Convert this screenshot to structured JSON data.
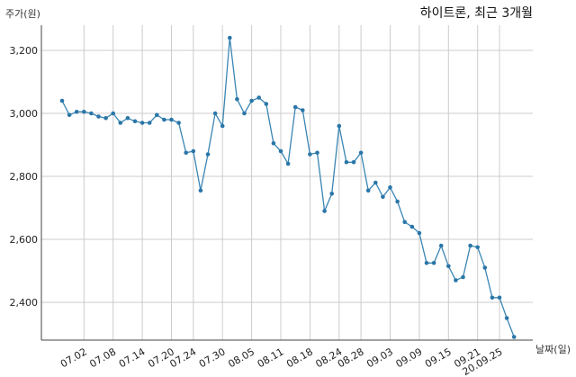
{
  "chart_data": {
    "type": "line",
    "title": "하이트론, 최근 3개월",
    "ylabel": "주가(원)",
    "xlabel": "날짜(일)",
    "ylim": [
      2280,
      3280
    ],
    "yticks": [
      2400,
      2600,
      2800,
      3000,
      3200
    ],
    "ytick_labels": [
      "2,400",
      "2,600",
      "2,800",
      "3,000",
      "3,200"
    ],
    "xtick_labels": [
      "07.02",
      "07.08",
      "07.14",
      "07.20",
      "07.24",
      "07.30",
      "08.05",
      "08.11",
      "08.18",
      "08.24",
      "08.28",
      "09.03",
      "09.09",
      "09.15",
      "09.21",
      "20.09.25"
    ],
    "xtick_index": [
      3,
      7,
      11,
      15,
      18,
      22,
      26,
      30,
      34,
      38,
      41,
      45,
      49,
      53,
      57,
      60
    ],
    "grid": true,
    "legend": "none",
    "color": "#2b76a8",
    "values": [
      3040,
      2995,
      3005,
      3005,
      3000,
      2990,
      2985,
      3000,
      2970,
      2985,
      2975,
      2970,
      2970,
      2995,
      2980,
      2980,
      2970,
      2875,
      2880,
      2755,
      2870,
      3000,
      2960,
      3240,
      3045,
      3000,
      3040,
      3050,
      3030,
      2905,
      2880,
      2840,
      3020,
      3010,
      2870,
      2875,
      2690,
      2745,
      2960,
      2845,
      2845,
      2875,
      2755,
      2780,
      2735,
      2765,
      2720,
      2655,
      2640,
      2620,
      2525,
      2525,
      2580,
      2515,
      2470,
      2480,
      2580,
      2575,
      2510,
      2415,
      2415,
      2350,
      2290
    ]
  }
}
